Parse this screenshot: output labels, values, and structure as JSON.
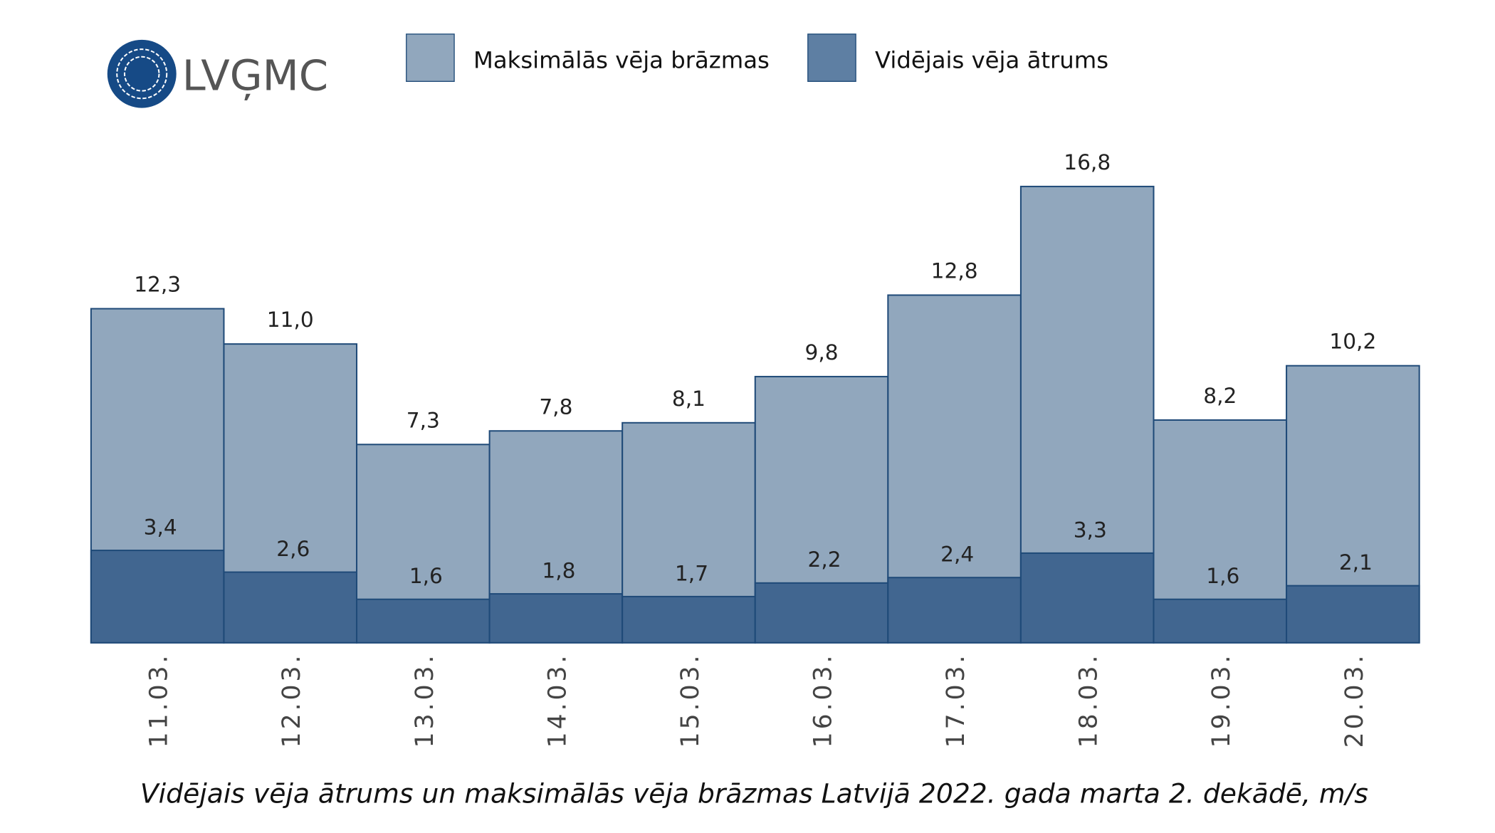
{
  "logo": {
    "text": "LVĢMC",
    "color": "#164a86"
  },
  "chart_data": {
    "type": "bar",
    "stacking": "overlay",
    "title": "Vidējais vēja ātrums un maksimālās vēja brāzmas Latvijā 2022. gada marta 2. dekādē, m/s",
    "xlabel": "",
    "ylabel": "",
    "ylim": [
      0,
      16.8
    ],
    "grid": false,
    "legend_position": "top",
    "categories": [
      "11.03.",
      "12.03.",
      "13.03.",
      "14.03.",
      "15.03.",
      "16.03.",
      "17.03.",
      "18.03.",
      "19.03.",
      "20.03."
    ],
    "series": [
      {
        "name": "Maksimālās vēja brāzmas",
        "color": "#91a7bd",
        "values": [
          12.3,
          11.0,
          7.3,
          7.8,
          8.1,
          9.8,
          12.8,
          16.8,
          8.2,
          10.2
        ],
        "labels": [
          "12,3",
          "11,0",
          "7,3",
          "7,8",
          "8,1",
          "9,8",
          "12,8",
          "16,8",
          "8,2",
          "10,2"
        ]
      },
      {
        "name": "Vidējais vēja ātrums",
        "color": "#416690",
        "values": [
          3.4,
          2.6,
          1.6,
          1.8,
          1.7,
          2.2,
          2.4,
          3.3,
          1.6,
          2.1
        ],
        "labels": [
          "3,4",
          "2,6",
          "1,6",
          "1,8",
          "1,7",
          "2,2",
          "2,4",
          "3,3",
          "1,6",
          "2,1"
        ]
      }
    ],
    "border_color": "#1f4a78"
  }
}
